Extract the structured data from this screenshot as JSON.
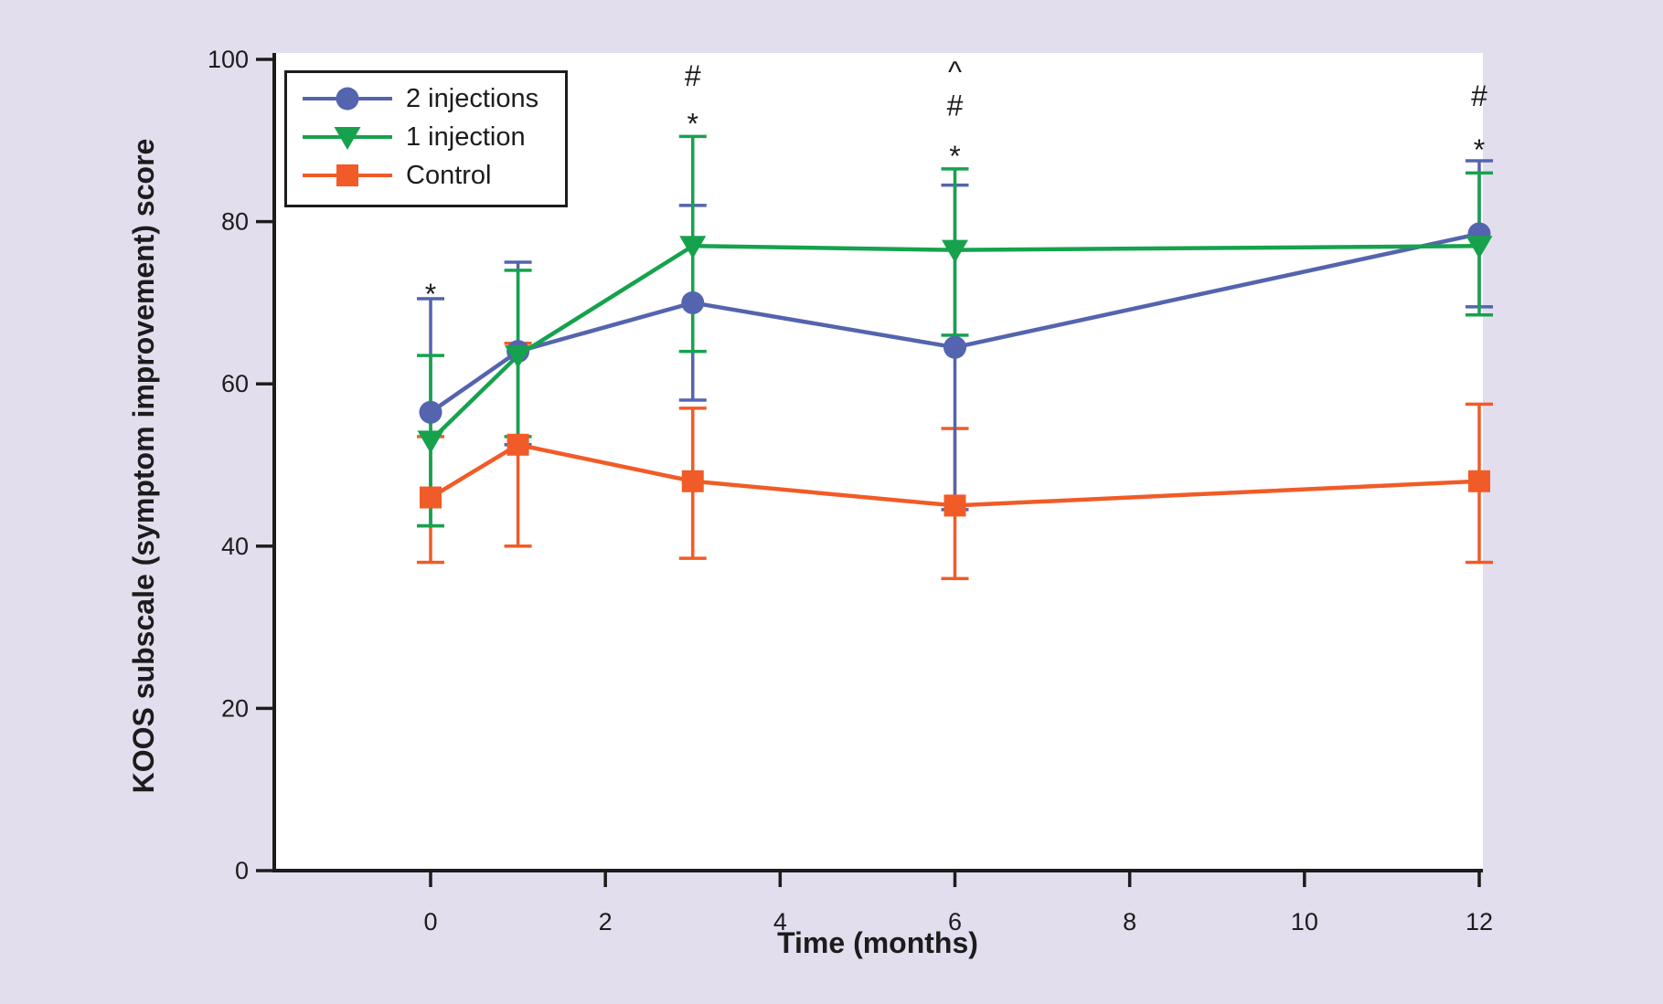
{
  "figure": {
    "background_color": "#e2deee",
    "plot_background_color": "#ffffff",
    "axis_color": "#1c1c1c",
    "text_color": "#1c1c1c"
  },
  "chart_data": {
    "type": "line",
    "title": "",
    "xlabel": "Time (months)",
    "ylabel": "KOOS subscale (symptom improvement) score",
    "x_ticks": [
      0,
      2,
      4,
      6,
      8,
      10,
      12
    ],
    "y_ticks": [
      0,
      20,
      40,
      60,
      80,
      100
    ],
    "xlim": [
      -1.8,
      12.05
    ],
    "ylim": [
      0,
      100
    ],
    "grid": false,
    "x": [
      0,
      1,
      3,
      6,
      12
    ],
    "series": [
      {
        "name": "2 injections",
        "color": "#5464ae",
        "marker": "circle",
        "values": [
          56.5,
          64,
          70,
          64.5,
          78.5
        ],
        "err_low": [
          42.5,
          52.5,
          58,
          44.5,
          69.5
        ],
        "err_high": [
          70.5,
          75,
          82,
          84.5,
          87.5
        ]
      },
      {
        "name": "1 injection",
        "color": "#16a24d",
        "marker": "triangle-down",
        "values": [
          53,
          63.5,
          77,
          76.5,
          77
        ],
        "err_low": [
          42.5,
          53.5,
          64,
          66,
          68.5
        ],
        "err_high": [
          63.5,
          74,
          90.5,
          86.5,
          86
        ]
      },
      {
        "name": "Control",
        "color": "#f15b27",
        "marker": "square",
        "values": [
          46,
          52.5,
          48,
          45,
          48
        ],
        "err_low": [
          38,
          40,
          38.5,
          36,
          38
        ],
        "err_high": [
          53.5,
          65,
          57,
          54.5,
          57.5
        ]
      }
    ],
    "annotations": [
      {
        "x": 0,
        "symbols": [
          {
            "glyph": "*",
            "score": 72.5
          }
        ]
      },
      {
        "x": 3,
        "symbols": [
          {
            "glyph": "#",
            "score": 98
          },
          {
            "glyph": "*",
            "score": 93.5
          }
        ]
      },
      {
        "x": 6,
        "symbols": [
          {
            "glyph": "^",
            "score": 98.5
          },
          {
            "glyph": "#",
            "score": 94.3
          },
          {
            "glyph": "*",
            "score": 89.5
          }
        ]
      },
      {
        "x": 12,
        "symbols": [
          {
            "glyph": "#",
            "score": 95.5
          },
          {
            "glyph": "*",
            "score": 90.3
          }
        ]
      }
    ],
    "legend": {
      "position": "top-left",
      "entries": [
        "2 injections",
        "1 injection",
        "Control"
      ]
    }
  }
}
